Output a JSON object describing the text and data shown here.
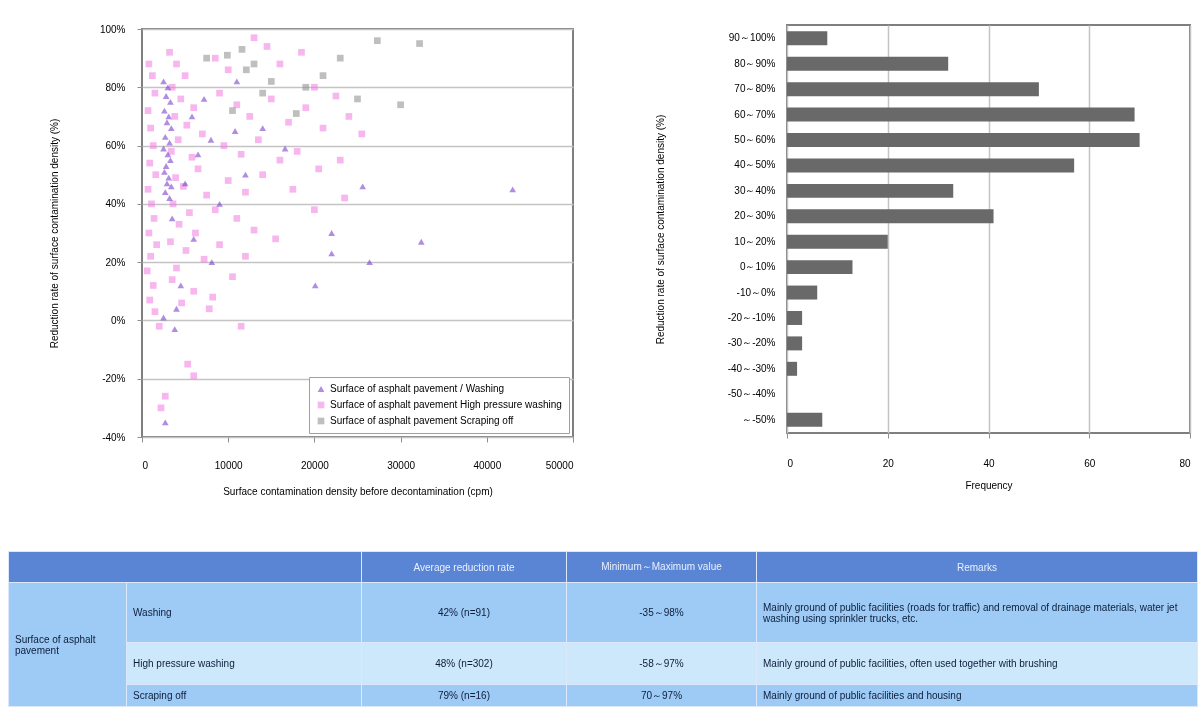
{
  "chart_data": [
    {
      "type": "scatter",
      "xlabel": "Surface contamination density before decontamination (cpm)",
      "ylabel": "Reduction rate of surface contamination density (%)",
      "xlim": [
        0,
        50000
      ],
      "xticks": [
        0,
        10000,
        20000,
        30000,
        40000,
        50000
      ],
      "ylim": [
        -40,
        100
      ],
      "yticks": [
        {
          "value": -40,
          "label": "-40%"
        },
        {
          "value": -20,
          "label": "-20%"
        },
        {
          "value": 0,
          "label": "0%"
        },
        {
          "value": 20,
          "label": "20%"
        },
        {
          "value": 40,
          "label": "40%"
        },
        {
          "value": 60,
          "label": "60%"
        },
        {
          "value": 80,
          "label": "80%"
        },
        {
          "value": 100,
          "label": "100%"
        }
      ],
      "grid": "y",
      "legend": "bottom right",
      "series": [
        {
          "name": "Surface of asphalt pavement / Washing",
          "color": "#7030c8",
          "marker": "triangle",
          "x": [
            2500,
            3000,
            2800,
            3300,
            2600,
            3100,
            2900,
            3400,
            2700,
            3200,
            2500,
            3000,
            3300,
            2800,
            2600,
            3100,
            2900,
            3400,
            2700,
            3200,
            5800,
            10800,
            16600,
            8000,
            6500,
            12000,
            4500,
            8100,
            22000,
            4000,
            6000,
            3500,
            9000,
            14000,
            5000,
            7200,
            11000,
            2500,
            3800,
            25600,
            43000,
            32400,
            20100,
            22000,
            26400,
            2700
          ],
          "values": [
            82,
            80,
            77,
            75,
            72,
            70,
            68,
            66,
            63,
            61,
            59,
            57,
            55,
            53,
            51,
            49,
            47,
            46,
            44,
            42,
            70,
            65,
            59,
            62,
            57,
            50,
            12,
            20,
            23,
            4,
            28,
            35,
            40,
            66,
            47,
            76,
            82,
            1,
            -3,
            46,
            45,
            27,
            12,
            30,
            20,
            -35
          ]
        },
        {
          "name": "Surface of asphalt pavement High pressure washing",
          "color": "#f07ce0",
          "marker": "square",
          "x": [
            800,
            1200,
            1500,
            700,
            1000,
            1300,
            900,
            1600,
            700,
            1100,
            1400,
            800,
            1700,
            1000,
            600,
            1300,
            900,
            1500,
            2000,
            2700,
            2200,
            3200,
            4000,
            5000,
            3500,
            4500,
            6000,
            3800,
            5200,
            7000,
            4200,
            3400,
            5800,
            6500,
            3900,
            4800,
            7500,
            3600,
            5500,
            4300,
            6200,
            3300,
            5100,
            7200,
            4000,
            3500,
            6000,
            4600,
            5300,
            6000,
            7800,
            8500,
            10000,
            13000,
            14500,
            16000,
            18500,
            20000,
            9000,
            11000,
            12500,
            15000,
            17000,
            19000,
            21000,
            22500,
            24000,
            25500,
            9500,
            11500,
            13500,
            16000,
            18000,
            20500,
            23000,
            10000,
            12000,
            14000,
            17500,
            8500,
            11000,
            13000,
            9000,
            12000,
            15500,
            10500,
            8200,
            11500,
            20000,
            23500
          ],
          "values": [
            88,
            84,
            78,
            72,
            66,
            60,
            54,
            50,
            45,
            40,
            35,
            30,
            26,
            22,
            17,
            12,
            7,
            3,
            -2,
            -26,
            -30,
            92,
            88,
            84,
            80,
            76,
            73,
            70,
            67,
            64,
            62,
            58,
            56,
            52,
            49,
            46,
            43,
            40,
            37,
            33,
            30,
            27,
            24,
            21,
            18,
            14,
            10,
            6,
            -15,
            -19,
            4,
            90,
            86,
            97,
            94,
            88,
            92,
            80,
            78,
            74,
            70,
            76,
            68,
            73,
            66,
            77,
            70,
            64,
            60,
            57,
            62,
            55,
            58,
            52,
            55,
            48,
            44,
            50,
            45,
            38,
            35,
            31,
            26,
            22,
            28,
            15,
            8,
            -2,
            38,
            42
          ]
        },
        {
          "name": "Surface of asphalt pavement Scraping off",
          "color": "#8a8a8a",
          "marker": "square",
          "x": [
            12100,
            21000,
            27300,
            32200,
            17900,
            9900,
            11600,
            13000,
            7500,
            19000,
            25000,
            15000,
            30000,
            23000,
            14000,
            10500
          ],
          "values": [
            86,
            84,
            96,
            95,
            71,
            91,
            93,
            88,
            90,
            80,
            76,
            82,
            74,
            90,
            78,
            72
          ]
        }
      ]
    },
    {
      "type": "bar",
      "orientation": "horizontal",
      "ylabel": "Reduction rate of surface contamination density (%)",
      "xlabel": "Frequency",
      "categories": [
        "90～100%",
        "80～90%",
        "70～80%",
        "60～70%",
        "50～60%",
        "40～50%",
        "30～40%",
        "20～30%",
        "10～20%",
        "0～10%",
        "-10～0%",
        "-20～-10%",
        "-30～-20%",
        "-40～-30%",
        "-50～-40%",
        "～-50%"
      ],
      "values": [
        8,
        32,
        50,
        69,
        70,
        57,
        33,
        41,
        20,
        13,
        6,
        3,
        3,
        2,
        0,
        7
      ],
      "color": "#696969",
      "xlim": [
        0,
        80
      ],
      "xticks": [
        0,
        20,
        40,
        60,
        80
      ],
      "grid": "x"
    },
    {
      "type": "other",
      "ylabel": "Surface of asphalt pavement",
      "categories": [
        "Average reduction rate",
        "Minimum～Maximum value",
        "Remarks"
      ],
      "y_categories": [
        "Washing",
        "High pressure washing",
        "Scraping off"
      ],
      "cell_labels": [
        [
          "42% (n=91)",
          "-35～98%",
          "Mainly ground of public facilities (roads for traffic) and removal of drainage materials, water jet washing using sprinkler trucks, etc."
        ],
        [
          "48% (n=302)",
          "-58～97%",
          "Mainly ground of public facilities, often used together with brushing"
        ],
        [
          "79% (n=16)",
          "70～97%",
          "Mainly ground of public facilities and housing"
        ]
      ]
    }
  ]
}
